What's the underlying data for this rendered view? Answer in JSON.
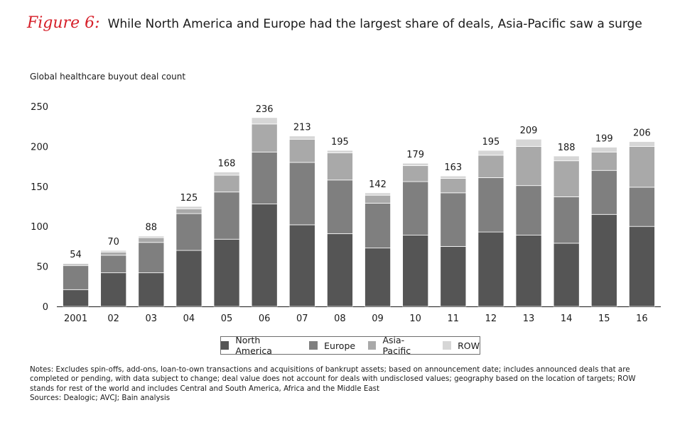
{
  "figure_label": "Figure 6:",
  "title": "While North America and Europe had the largest share of deals, Asia-Pacific saw a surge",
  "notes": "Notes: Excludes spin-offs, add-ons, loan-to-own transactions and acquisitions of bankrupt assets; based on announcement date; includes announced deals that are completed or pending, with data subject to change; deal value does not account for deals with undisclosed values; geography based on the location of targets; ROW stands for rest of the world and includes Central and South America, Africa and the Middle East",
  "sources": "Sources: Dealogic; AVCJ; Bain analysis",
  "colors": {
    "North America": "#555555",
    "Europe": "#7f7f7f",
    "Asia-Pacific": "#a9a9a9",
    "ROW": "#d6d6d6"
  },
  "chart_data": {
    "type": "bar",
    "stacked": true,
    "ylabel": "Global healthcare buyout deal count",
    "ylim": [
      0,
      250
    ],
    "yticks": [
      0,
      50,
      100,
      150,
      200,
      250
    ],
    "categories": [
      "2001",
      "02",
      "03",
      "04",
      "05",
      "06",
      "07",
      "08",
      "09",
      "10",
      "11",
      "12",
      "13",
      "14",
      "15",
      "16"
    ],
    "totals": [
      54,
      70,
      88,
      125,
      168,
      236,
      213,
      195,
      142,
      179,
      163,
      195,
      209,
      188,
      199,
      206
    ],
    "series": [
      {
        "name": "North America",
        "values": [
          21,
          42,
          42,
          70,
          84,
          128,
          102,
          91,
          73,
          89,
          75,
          93,
          89,
          79,
          115,
          100
        ]
      },
      {
        "name": "Europe",
        "values": [
          30,
          22,
          38,
          46,
          59,
          65,
          78,
          67,
          56,
          67,
          67,
          68,
          62,
          58,
          55,
          49
        ]
      },
      {
        "name": "Asia-Pacific",
        "values": [
          2,
          4,
          6,
          6,
          21,
          35,
          29,
          34,
          10,
          20,
          18,
          28,
          49,
          45,
          23,
          51
        ]
      },
      {
        "name": "ROW",
        "values": [
          1,
          2,
          2,
          3,
          4,
          8,
          4,
          3,
          3,
          3,
          3,
          6,
          9,
          6,
          6,
          6
        ]
      }
    ],
    "legend_position": "bottom"
  }
}
